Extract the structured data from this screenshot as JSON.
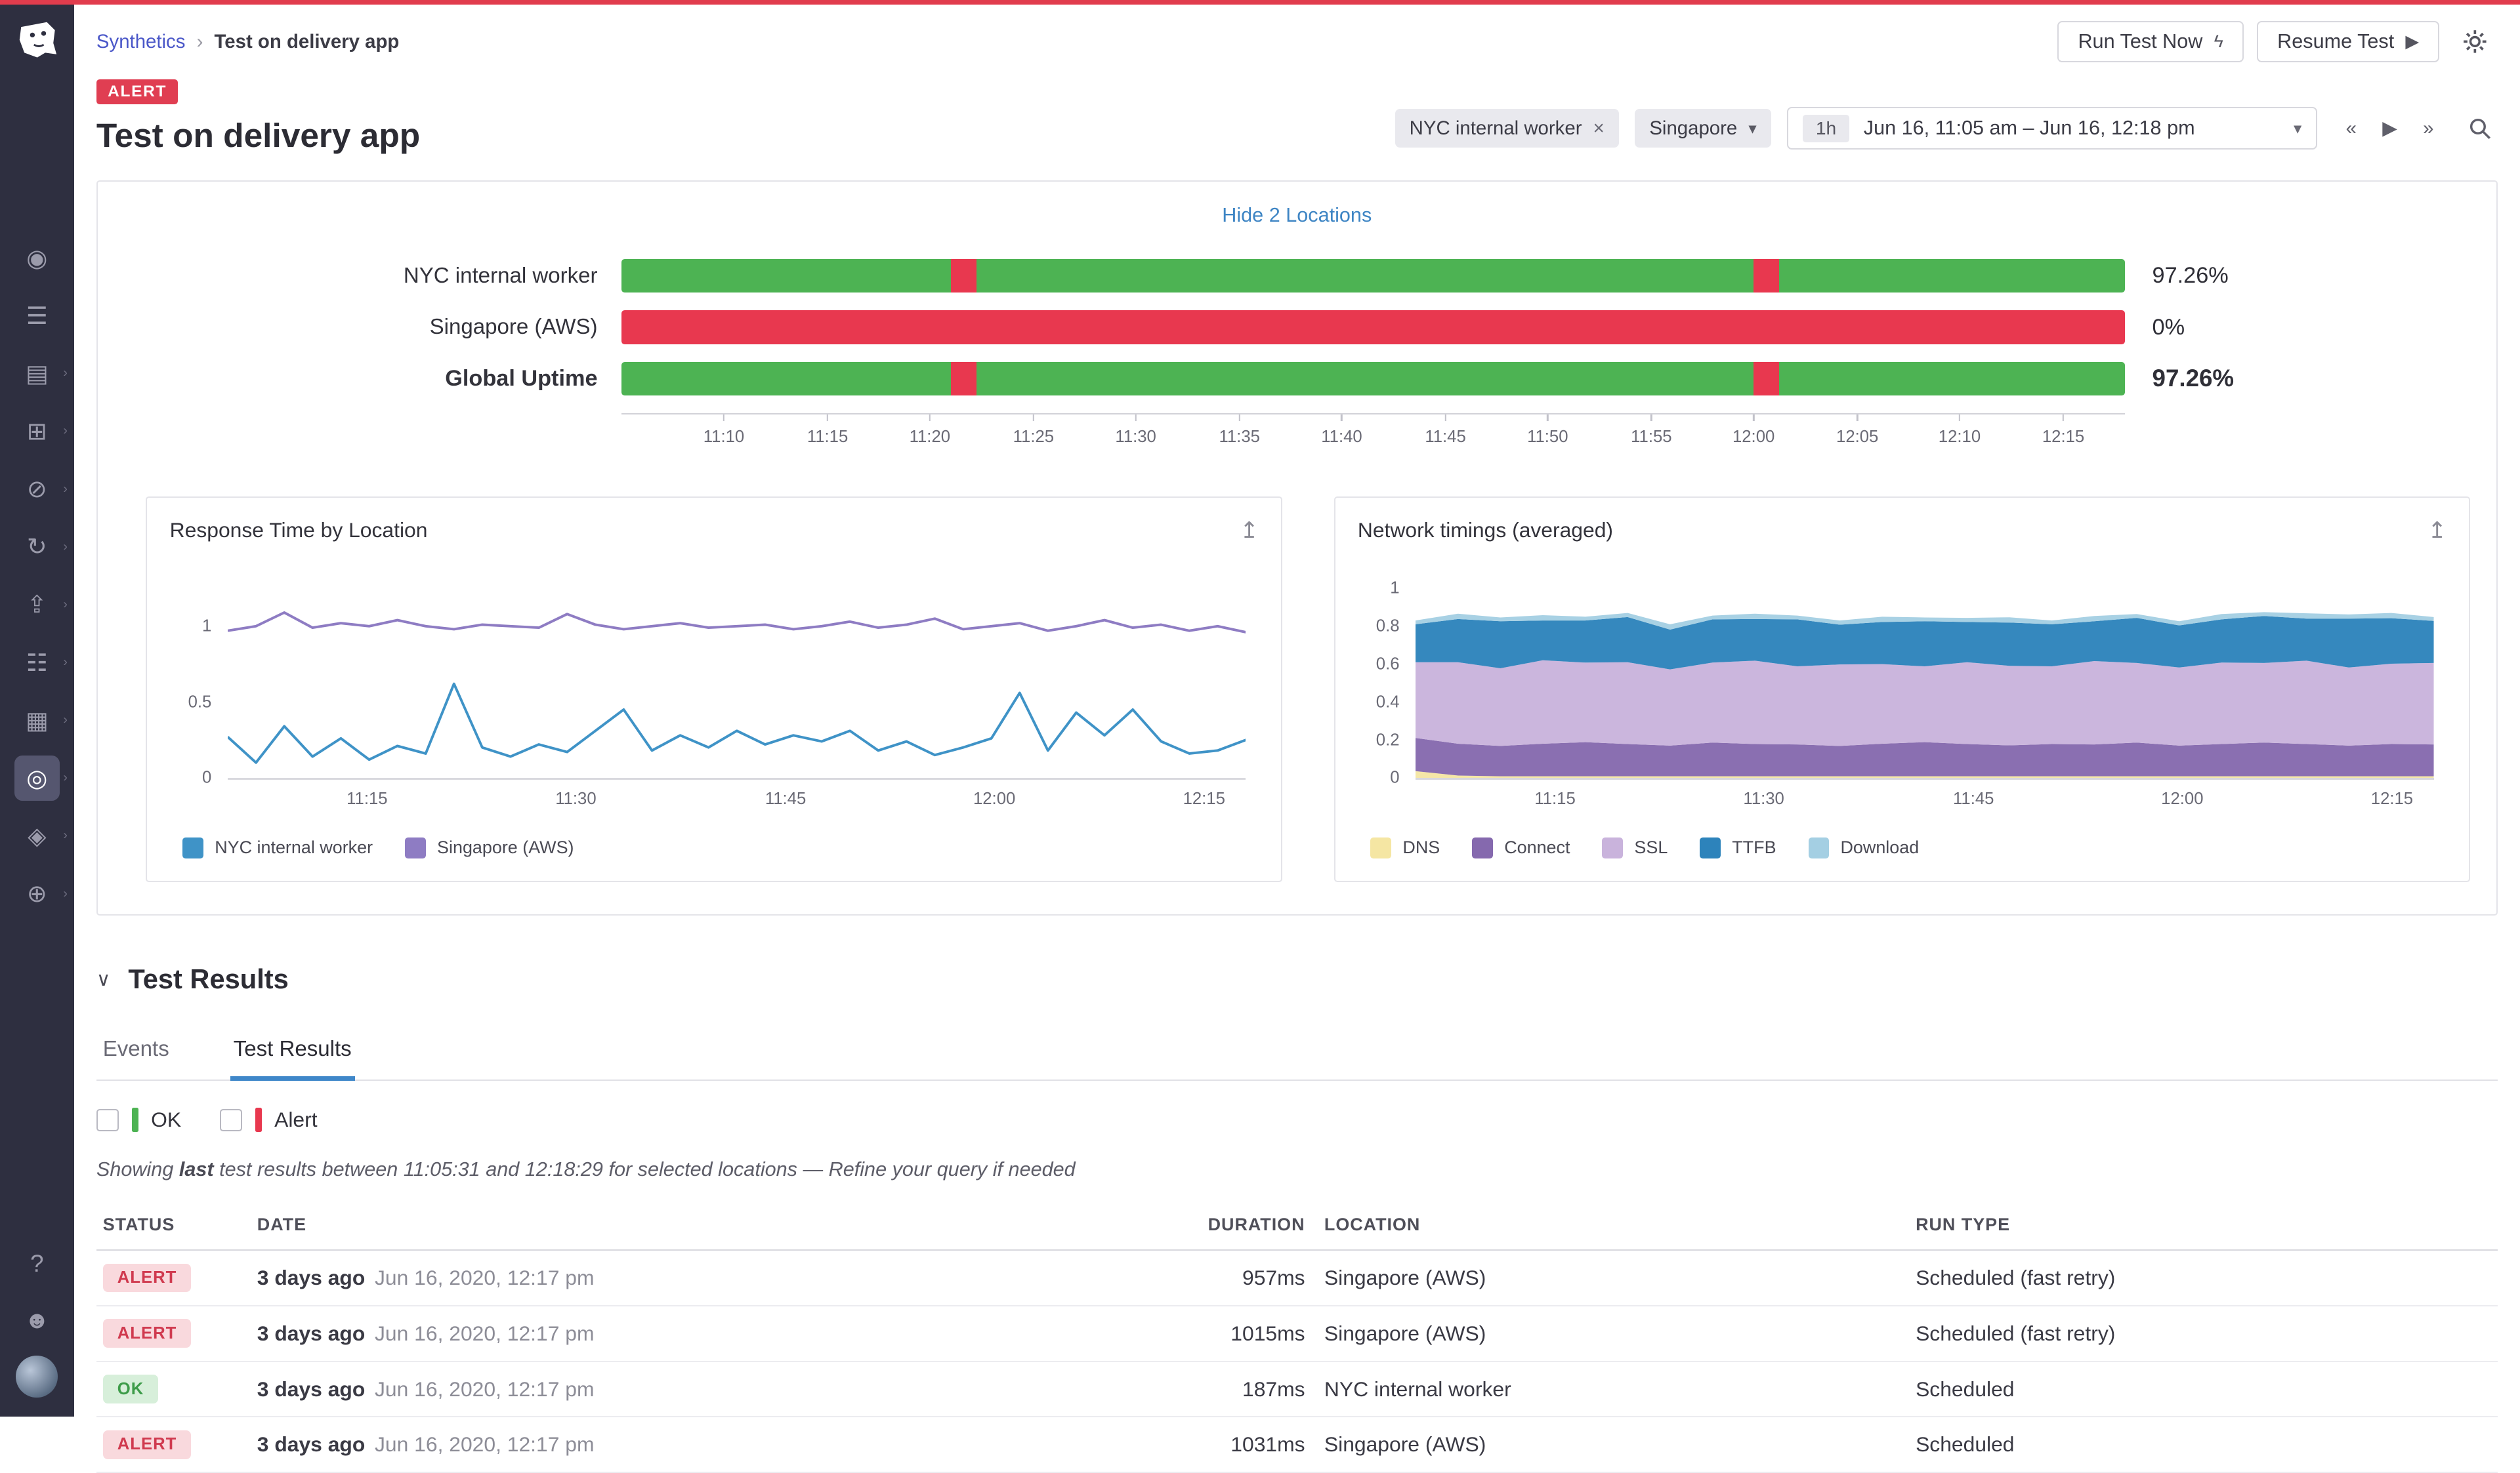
{
  "icons": {
    "caret": "▾",
    "close": "×",
    "flyout": "›",
    "export": "↥",
    "back": "«",
    "play": "▶",
    "forward": "»",
    "bolt": "ϟ",
    "section_chevron": "∨",
    "breadcrumb_sep": "›",
    "help": "?"
  },
  "colors": {
    "ok_green": "#4db353",
    "alert_red": "#e8384f",
    "tab_underline": "#3f87c9",
    "topline_red": "#e13c4d"
  },
  "sidebar": {
    "items": [
      {
        "name": "watchdog",
        "glyph": "◉",
        "chevron": false,
        "active": false
      },
      {
        "name": "events",
        "glyph": "☰",
        "chevron": false,
        "active": false
      },
      {
        "name": "metrics",
        "glyph": "▤",
        "chevron": true,
        "active": false
      },
      {
        "name": "integrations",
        "glyph": "⊞",
        "chevron": true,
        "active": false
      },
      {
        "name": "incidents",
        "glyph": "⊘",
        "chevron": true,
        "active": false
      },
      {
        "name": "apm",
        "glyph": "↻",
        "chevron": true,
        "active": false
      },
      {
        "name": "ci",
        "glyph": "⇪",
        "chevron": true,
        "active": false
      },
      {
        "name": "monitors",
        "glyph": "☷",
        "chevron": true,
        "active": false
      },
      {
        "name": "notebooks",
        "glyph": "▦",
        "chevron": true,
        "active": false
      },
      {
        "name": "synthetics",
        "glyph": "◎",
        "chevron": true,
        "active": true
      },
      {
        "name": "security",
        "glyph": "◈",
        "chevron": true,
        "active": false
      },
      {
        "name": "settings",
        "glyph": "⊕",
        "chevron": true,
        "active": false
      }
    ],
    "bottom": [
      {
        "name": "help",
        "glyph": "?"
      },
      {
        "name": "org-users",
        "glyph": "☻"
      }
    ]
  },
  "topnav": {
    "breadcrumb_root": "Synthetics",
    "breadcrumb_current": "Test on delivery app",
    "run_button": "Run Test Now",
    "resume_button": "Resume Test"
  },
  "header": {
    "status_badge": "ALERT",
    "title": "Test on delivery app",
    "location_tag": "NYC internal worker",
    "location_select": "Singapore",
    "time_badge": "1h",
    "time_range": "Jun 16, 11:05 am – Jun 16, 12:18 pm"
  },
  "uptime_section": {
    "toggle_link": "Hide 2 Locations"
  },
  "chart_data": [
    {
      "id": "uptime-by-location",
      "type": "bar",
      "title": "Uptime by location",
      "x_ticks": [
        {
          "label": "11:10",
          "pct": 6.8
        },
        {
          "label": "11:15",
          "pct": 13.7
        },
        {
          "label": "11:20",
          "pct": 20.5
        },
        {
          "label": "11:25",
          "pct": 27.4
        },
        {
          "label": "11:30",
          "pct": 34.2
        },
        {
          "label": "11:35",
          "pct": 41.1
        },
        {
          "label": "11:40",
          "pct": 47.9
        },
        {
          "label": "11:45",
          "pct": 54.8
        },
        {
          "label": "11:50",
          "pct": 61.6
        },
        {
          "label": "11:55",
          "pct": 68.5
        },
        {
          "label": "12:00",
          "pct": 75.3
        },
        {
          "label": "12:05",
          "pct": 82.2
        },
        {
          "label": "12:10",
          "pct": 89.0
        },
        {
          "label": "12:15",
          "pct": 95.9
        }
      ],
      "rows": [
        {
          "label": "NYC internal worker",
          "value": "97.26%",
          "bold": false,
          "segments": [
            {
              "from": 0,
              "to": 21.9,
              "status": "ok"
            },
            {
              "from": 21.9,
              "to": 23.6,
              "status": "alert"
            },
            {
              "from": 23.6,
              "to": 75.3,
              "status": "ok"
            },
            {
              "from": 75.3,
              "to": 77.0,
              "status": "alert"
            },
            {
              "from": 77.0,
              "to": 100,
              "status": "ok"
            }
          ]
        },
        {
          "label": "Singapore (AWS)",
          "value": "0%",
          "bold": false,
          "segments": [
            {
              "from": 0,
              "to": 100,
              "status": "alert"
            }
          ]
        },
        {
          "label": "Global Uptime",
          "value": "97.26%",
          "bold": true,
          "segments": [
            {
              "from": 0,
              "to": 21.9,
              "status": "ok"
            },
            {
              "from": 21.9,
              "to": 23.6,
              "status": "alert"
            },
            {
              "from": 23.6,
              "to": 75.3,
              "status": "ok"
            },
            {
              "from": 75.3,
              "to": 77.0,
              "status": "alert"
            },
            {
              "from": 77.0,
              "to": 100,
              "status": "ok"
            }
          ]
        }
      ]
    },
    {
      "id": "response-time-by-location",
      "type": "line",
      "title": "Response Time by Location",
      "ylim": [
        0,
        1.25
      ],
      "y_ticks": [
        "0",
        "0.5",
        "1"
      ],
      "x_ticks": [
        {
          "label": "11:15",
          "pct": 13.7
        },
        {
          "label": "11:30",
          "pct": 34.2
        },
        {
          "label": "11:45",
          "pct": 54.8
        },
        {
          "label": "12:00",
          "pct": 75.3
        },
        {
          "label": "12:15",
          "pct": 95.9
        }
      ],
      "series": [
        {
          "name": "NYC internal worker",
          "color": "#3f93c7",
          "values": [
            0.27,
            0.1,
            0.34,
            0.14,
            0.26,
            0.12,
            0.21,
            0.16,
            0.62,
            0.2,
            0.14,
            0.22,
            0.17,
            0.31,
            0.45,
            0.18,
            0.28,
            0.2,
            0.31,
            0.22,
            0.28,
            0.24,
            0.31,
            0.18,
            0.24,
            0.15,
            0.2,
            0.26,
            0.56,
            0.18,
            0.43,
            0.28,
            0.45,
            0.24,
            0.16,
            0.18,
            0.25
          ]
        },
        {
          "name": "Singapore (AWS)",
          "color": "#8e7cc3",
          "values": [
            0.97,
            1.0,
            1.09,
            0.99,
            1.02,
            1.0,
            1.04,
            1.0,
            0.98,
            1.01,
            1.0,
            0.99,
            1.08,
            1.01,
            0.98,
            1.0,
            1.02,
            0.99,
            1.0,
            1.01,
            0.98,
            1.0,
            1.03,
            0.99,
            1.01,
            1.05,
            0.98,
            1.0,
            1.02,
            0.97,
            1.0,
            1.04,
            0.99,
            1.01,
            0.97,
            1.0,
            0.96
          ]
        }
      ]
    },
    {
      "id": "network-timings-averaged",
      "type": "area",
      "stacked": true,
      "title": "Network timings (averaged)",
      "ylim": [
        0,
        1
      ],
      "y_ticks": [
        "0",
        "0.2",
        "0.4",
        "0.6",
        "0.8",
        "1"
      ],
      "x_ticks": [
        {
          "label": "11:15",
          "pct": 13.7
        },
        {
          "label": "11:30",
          "pct": 34.2
        },
        {
          "label": "11:45",
          "pct": 54.8
        },
        {
          "label": "12:00",
          "pct": 75.3
        },
        {
          "label": "12:15",
          "pct": 95.9
        }
      ],
      "series": [
        {
          "name": "DNS",
          "color": "#f5e6a3",
          "values": [
            0.035,
            0.012,
            0.008,
            0.008,
            0.008,
            0.008,
            0.008,
            0.008,
            0.008,
            0.008,
            0.008,
            0.008,
            0.008,
            0.008,
            0.008,
            0.008,
            0.008,
            0.008,
            0.008,
            0.008,
            0.008,
            0.008,
            0.008,
            0.008,
            0.008
          ]
        },
        {
          "name": "Connect",
          "color": "#8569ae",
          "values": [
            0.175,
            0.168,
            0.16,
            0.172,
            0.18,
            0.17,
            0.162,
            0.178,
            0.17,
            0.168,
            0.16,
            0.172,
            0.18,
            0.17,
            0.163,
            0.17,
            0.168,
            0.178,
            0.162,
            0.17,
            0.178,
            0.17,
            0.162,
            0.17,
            0.168
          ]
        },
        {
          "name": "SSL",
          "color": "#c9b3dc",
          "values": [
            0.4,
            0.43,
            0.41,
            0.44,
            0.42,
            0.432,
            0.402,
            0.422,
            0.44,
            0.412,
            0.43,
            0.42,
            0.4,
            0.432,
            0.42,
            0.41,
            0.44,
            0.42,
            0.412,
            0.43,
            0.42,
            0.44,
            0.412,
            0.424,
            0.43
          ]
        },
        {
          "name": "TTFB",
          "color": "#2d83bb",
          "values": [
            0.2,
            0.228,
            0.248,
            0.21,
            0.222,
            0.238,
            0.21,
            0.228,
            0.22,
            0.248,
            0.21,
            0.222,
            0.238,
            0.212,
            0.228,
            0.222,
            0.21,
            0.238,
            0.222,
            0.228,
            0.248,
            0.222,
            0.258,
            0.24,
            0.222
          ]
        },
        {
          "name": "Download",
          "color": "#a4cfe3",
          "values": [
            0.02,
            0.028,
            0.02,
            0.028,
            0.02,
            0.022,
            0.028,
            0.02,
            0.028,
            0.02,
            0.022,
            0.028,
            0.02,
            0.022,
            0.028,
            0.02,
            0.028,
            0.02,
            0.022,
            0.028,
            0.02,
            0.028,
            0.022,
            0.028,
            0.02
          ]
        }
      ]
    }
  ],
  "test_results": {
    "section_title": "Test Results",
    "tabs": [
      {
        "label": "Events",
        "active": false
      },
      {
        "label": "Test Results",
        "active": true
      }
    ],
    "filters": [
      {
        "label": "OK",
        "color": "#4db353"
      },
      {
        "label": "Alert",
        "color": "#e8384f"
      }
    ],
    "note": {
      "prefix": "Showing ",
      "bold": "last",
      "middle": " test results between 11:05:31 and 12:18:29 for selected locations",
      "sep": " — ",
      "link": "Refine your query if needed"
    },
    "columns": [
      "STATUS",
      "DATE",
      "DURATION",
      "LOCATION",
      "RUN TYPE"
    ],
    "rows": [
      {
        "status": "ALERT",
        "relative": "3 days ago",
        "date": "Jun 16, 2020, 12:17 pm",
        "duration": "957ms",
        "location": "Singapore (AWS)",
        "run_type": "Scheduled (fast retry)"
      },
      {
        "status": "ALERT",
        "relative": "3 days ago",
        "date": "Jun 16, 2020, 12:17 pm",
        "duration": "1015ms",
        "location": "Singapore (AWS)",
        "run_type": "Scheduled (fast retry)"
      },
      {
        "status": "OK",
        "relative": "3 days ago",
        "date": "Jun 16, 2020, 12:17 pm",
        "duration": "187ms",
        "location": "NYC internal worker",
        "run_type": "Scheduled"
      },
      {
        "status": "ALERT",
        "relative": "3 days ago",
        "date": "Jun 16, 2020, 12:17 pm",
        "duration": "1031ms",
        "location": "Singapore (AWS)",
        "run_type": "Scheduled"
      }
    ]
  }
}
